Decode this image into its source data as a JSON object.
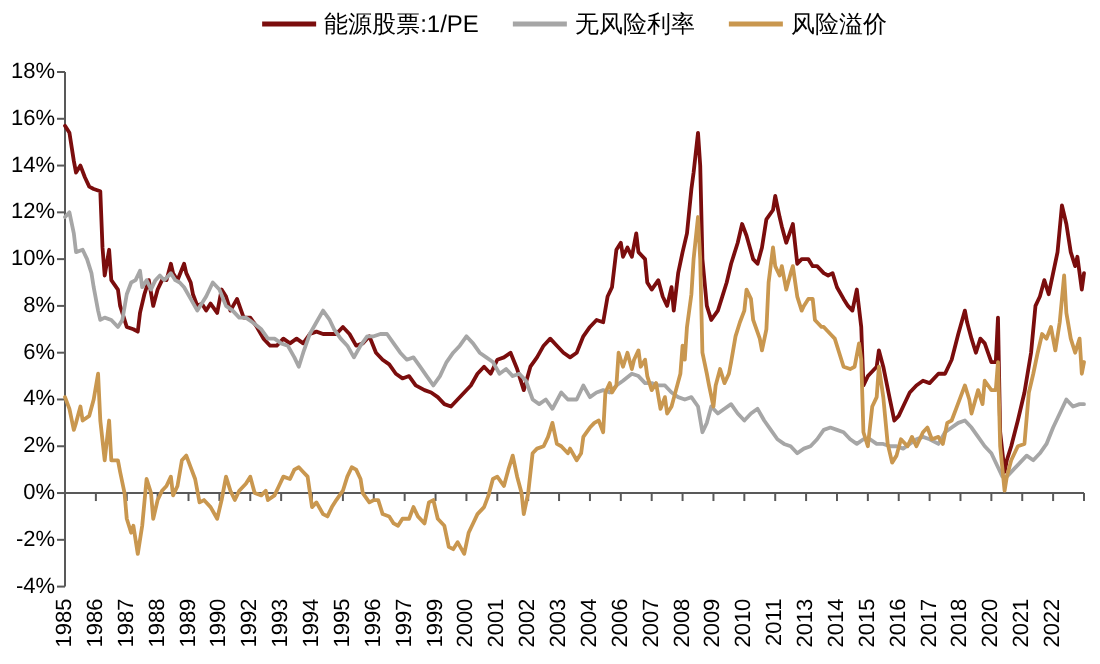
{
  "chart_data": {
    "type": "line",
    "legend": "top",
    "xlim": [
      "1985-01",
      "2023-07"
    ],
    "ylim": [
      -4,
      18
    ],
    "xticks": [
      {
        "value": "1985-01",
        "label": "1985"
      },
      {
        "value": "1986-03",
        "label": "1986"
      },
      {
        "value": "1987-05",
        "label": "1987"
      },
      {
        "value": "1988-07",
        "label": "1988"
      },
      {
        "value": "1989-09",
        "label": "1989"
      },
      {
        "value": "1990-11",
        "label": "1990"
      },
      {
        "value": "1992-01",
        "label": "1992"
      },
      {
        "value": "1993-03",
        "label": "1993"
      },
      {
        "value": "1994-05",
        "label": "1994"
      },
      {
        "value": "1995-07",
        "label": "1995"
      },
      {
        "value": "1996-09",
        "label": "1996"
      },
      {
        "value": "1997-11",
        "label": "1997"
      },
      {
        "value": "1999-01",
        "label": "1999"
      },
      {
        "value": "2000-03",
        "label": "2000"
      },
      {
        "value": "2001-05",
        "label": "2001"
      },
      {
        "value": "2002-07",
        "label": "2002"
      },
      {
        "value": "2003-09",
        "label": "2003"
      },
      {
        "value": "2004-11",
        "label": "2004"
      },
      {
        "value": "2006-01",
        "label": "2006"
      },
      {
        "value": "2007-03",
        "label": "2007"
      },
      {
        "value": "2008-05",
        "label": "2008"
      },
      {
        "value": "2009-07",
        "label": "2009"
      },
      {
        "value": "2010-09",
        "label": "2010"
      },
      {
        "value": "2011-11",
        "label": "2011"
      },
      {
        "value": "2013-01",
        "label": "2013"
      },
      {
        "value": "2014-03",
        "label": "2014"
      },
      {
        "value": "2015-05",
        "label": "2015"
      },
      {
        "value": "2016-07",
        "label": "2016"
      },
      {
        "value": "2017-09",
        "label": "2017"
      },
      {
        "value": "2018-11",
        "label": "2018"
      },
      {
        "value": "2020-01",
        "label": "2020"
      },
      {
        "value": "2021-03",
        "label": "2021"
      },
      {
        "value": "2022-05",
        "label": "2022"
      },
      {
        "value": "2023-07",
        "label": null
      }
    ],
    "yticks": [
      {
        "value": -4,
        "label": "-4%"
      },
      {
        "value": -2,
        "label": "-2%"
      },
      {
        "value": 0,
        "label": "0%"
      },
      {
        "value": 2,
        "label": "2%"
      },
      {
        "value": 4,
        "label": "4%"
      },
      {
        "value": 6,
        "label": "6%"
      },
      {
        "value": 8,
        "label": "8%"
      },
      {
        "value": 10,
        "label": "10%"
      },
      {
        "value": 12,
        "label": "12%"
      },
      {
        "value": 14,
        "label": "14%"
      },
      {
        "value": 16,
        "label": "16%"
      },
      {
        "value": 18,
        "label": "18%"
      }
    ],
    "series": [
      {
        "name": "能源股票:1/PE",
        "color": "#7b0d0d",
        "x": [
          "1985-01",
          "1985-03",
          "1985-05",
          "1985-06",
          "1985-08",
          "1985-10",
          "1985-12",
          "1986-02",
          "1986-05",
          "1986-06",
          "1986-07",
          "1986-09",
          "1986-10",
          "1987-01",
          "1987-02",
          "1987-04",
          "1987-05",
          "1987-08",
          "1987-10",
          "1987-11",
          "1988-01",
          "1988-03",
          "1988-05",
          "1988-07",
          "1988-09",
          "1988-11",
          "1989-01",
          "1989-02",
          "1989-04",
          "1989-07",
          "1989-08",
          "1989-10",
          "1989-11",
          "1990-01",
          "1990-03",
          "1990-05",
          "1990-07",
          "1990-10",
          "1990-12",
          "1991-02",
          "1991-04",
          "1991-07",
          "1991-10",
          "1992-01",
          "1992-04",
          "1992-07",
          "1992-10",
          "1993-01",
          "1993-04",
          "1993-07",
          "1993-10",
          "1994-01",
          "1994-04",
          "1994-07",
          "1994-10",
          "1995-01",
          "1995-04",
          "1995-07",
          "1995-10",
          "1996-01",
          "1996-04",
          "1996-07",
          "1996-10",
          "1997-01",
          "1997-04",
          "1997-07",
          "1997-10",
          "1998-01",
          "1998-04",
          "1998-08",
          "1998-11",
          "1999-02",
          "1999-05",
          "1999-08",
          "1999-11",
          "2000-02",
          "2000-05",
          "2000-08",
          "2000-11",
          "2001-02",
          "2001-05",
          "2001-08",
          "2001-11",
          "2002-02",
          "2002-05",
          "2002-08",
          "2002-11",
          "2003-02",
          "2003-05",
          "2003-08",
          "2003-11",
          "2004-02",
          "2004-05",
          "2004-08",
          "2004-11",
          "2005-02",
          "2005-05",
          "2005-07",
          "2005-09",
          "2005-11",
          "2006-01",
          "2006-02",
          "2006-04",
          "2006-06",
          "2006-08",
          "2006-09",
          "2006-12",
          "2007-01",
          "2007-03",
          "2007-06",
          "2007-08",
          "2007-10",
          "2007-12",
          "2008-01",
          "2008-03",
          "2008-05",
          "2008-07",
          "2008-09",
          "2008-10",
          "2008-12",
          "2009-01",
          "2009-02",
          "2009-04",
          "2009-06",
          "2009-09",
          "2009-11",
          "2010-01",
          "2010-03",
          "2010-06",
          "2010-08",
          "2010-10",
          "2011-01",
          "2011-03",
          "2011-05",
          "2011-07",
          "2011-10",
          "2011-11",
          "2012-01",
          "2012-02",
          "2012-04",
          "2012-07",
          "2012-09",
          "2012-11",
          "2013-02",
          "2013-04",
          "2013-06",
          "2013-09",
          "2013-11",
          "2014-01",
          "2014-03",
          "2014-06",
          "2014-08",
          "2014-10",
          "2014-12",
          "2015-02",
          "2015-03",
          "2015-05",
          "2015-06",
          "2015-09",
          "2015-10",
          "2015-12",
          "2016-03",
          "2016-05",
          "2016-07",
          "2016-09",
          "2016-12",
          "2017-03",
          "2017-06",
          "2017-09",
          "2018-01",
          "2018-04",
          "2018-07",
          "2018-10",
          "2019-01",
          "2019-02",
          "2019-04",
          "2019-06",
          "2019-08",
          "2019-10",
          "2020-01",
          "2020-03",
          "2020-04",
          "2020-05",
          "2020-07",
          "2020-08",
          "2020-10",
          "2021-01",
          "2021-04",
          "2021-07",
          "2021-09",
          "2021-11",
          "2022-01",
          "2022-03",
          "2022-05",
          "2022-07",
          "2022-09",
          "2022-11",
          "2023-01",
          "2023-03",
          "2023-04",
          "2023-06",
          "2023-07"
        ],
        "values": [
          15.7,
          15.4,
          14.2,
          13.7,
          14.0,
          13.5,
          13.1,
          13.0,
          12.9,
          10.5,
          9.3,
          10.4,
          9.1,
          8.7,
          8.0,
          7.4,
          7.1,
          7.0,
          6.9,
          7.7,
          8.5,
          9.1,
          8.0,
          8.7,
          9.1,
          9.1,
          9.8,
          9.4,
          9.1,
          9.8,
          9.4,
          9.0,
          8.5,
          8.0,
          8.1,
          7.8,
          8.1,
          7.7,
          8.7,
          8.4,
          7.8,
          8.3,
          7.5,
          7.5,
          7.1,
          6.6,
          6.3,
          6.3,
          6.6,
          6.4,
          6.6,
          6.4,
          6.8,
          6.9,
          6.8,
          6.8,
          6.8,
          7.1,
          6.8,
          6.3,
          6.4,
          6.7,
          6.0,
          5.7,
          5.5,
          5.1,
          4.9,
          5.0,
          4.6,
          4.4,
          4.3,
          4.1,
          3.8,
          3.7,
          4.0,
          4.3,
          4.6,
          5.1,
          5.4,
          5.1,
          5.7,
          5.8,
          6.0,
          5.3,
          4.4,
          5.4,
          5.8,
          6.3,
          6.6,
          6.3,
          6.0,
          5.8,
          6.0,
          6.7,
          7.1,
          7.4,
          7.3,
          8.4,
          8.8,
          10.4,
          10.7,
          10.1,
          10.5,
          10.1,
          11.1,
          10.3,
          10.0,
          9.0,
          8.7,
          9.1,
          8.4,
          8.0,
          8.8,
          7.8,
          9.4,
          10.3,
          11.1,
          13.0,
          13.7,
          15.4,
          14.0,
          10.0,
          8.0,
          7.4,
          7.8,
          8.4,
          9.0,
          9.8,
          10.7,
          11.5,
          11.0,
          10.0,
          9.8,
          10.5,
          11.7,
          12.1,
          12.7,
          11.8,
          11.4,
          10.7,
          11.5,
          9.8,
          10.0,
          10.0,
          9.7,
          9.7,
          9.4,
          9.3,
          9.4,
          8.8,
          8.3,
          8.0,
          7.8,
          8.7,
          7.1,
          4.6,
          5.0,
          5.1,
          5.4,
          6.1,
          5.4,
          4.0,
          3.1,
          3.3,
          3.7,
          4.3,
          4.6,
          4.8,
          4.7,
          5.1,
          5.1,
          5.7,
          6.8,
          7.8,
          7.3,
          6.6,
          6.0,
          6.6,
          6.4,
          5.6,
          5.6,
          7.5,
          2.6,
          0.9,
          1.4,
          2.0,
          3.1,
          4.3,
          6.0,
          8.0,
          8.4,
          9.1,
          8.5,
          9.4,
          10.3,
          12.3,
          11.5,
          10.3,
          9.7,
          10.1,
          8.7,
          9.4
        ]
      },
      {
        "name": "无风险利率",
        "color": "#a6a6a6",
        "x": [
          "1985-01",
          "1985-03",
          "1985-05",
          "1985-06",
          "1985-09",
          "1985-11",
          "1986-01",
          "1986-02",
          "1986-04",
          "1986-05",
          "1986-07",
          "1986-10",
          "1987-01",
          "1987-03",
          "1987-05",
          "1987-07",
          "1987-09",
          "1987-11",
          "1987-12",
          "1988-02",
          "1988-04",
          "1988-06",
          "1988-08",
          "1988-10",
          "1989-01",
          "1989-03",
          "1989-05",
          "1989-07",
          "1989-10",
          "1990-01",
          "1990-03",
          "1990-05",
          "1990-08",
          "1990-11",
          "1991-02",
          "1991-05",
          "1991-08",
          "1991-11",
          "1992-02",
          "1992-06",
          "1992-09",
          "1992-12",
          "1993-03",
          "1993-06",
          "1993-09",
          "1993-11",
          "1994-01",
          "1994-04",
          "1994-07",
          "1994-10",
          "1995-01",
          "1995-03",
          "1995-06",
          "1995-09",
          "1995-12",
          "1996-03",
          "1996-06",
          "1996-09",
          "1996-12",
          "1997-03",
          "1997-06",
          "1997-09",
          "1997-12",
          "1998-03",
          "1998-06",
          "1998-09",
          "1998-12",
          "1999-03",
          "1999-06",
          "1999-09",
          "1999-12",
          "2000-03",
          "2000-06",
          "2000-09",
          "2000-12",
          "2001-03",
          "2001-06",
          "2001-09",
          "2001-12",
          "2002-03",
          "2002-06",
          "2002-09",
          "2002-12",
          "2003-03",
          "2003-06",
          "2003-10",
          "2004-01",
          "2004-05",
          "2004-08",
          "2004-11",
          "2005-02",
          "2005-05",
          "2005-08",
          "2005-11",
          "2006-02",
          "2006-06",
          "2006-09",
          "2006-12",
          "2007-03",
          "2007-06",
          "2007-09",
          "2007-12",
          "2008-03",
          "2008-06",
          "2008-09",
          "2008-12",
          "2009-02",
          "2009-04",
          "2009-06",
          "2009-09",
          "2009-12",
          "2010-03",
          "2010-06",
          "2010-09",
          "2010-12",
          "2011-03",
          "2011-06",
          "2011-09",
          "2011-12",
          "2012-03",
          "2012-06",
          "2012-09",
          "2012-12",
          "2013-03",
          "2013-06",
          "2013-09",
          "2013-12",
          "2014-03",
          "2014-06",
          "2014-09",
          "2014-12",
          "2015-03",
          "2015-06",
          "2015-09",
          "2015-12",
          "2016-03",
          "2016-06",
          "2016-09",
          "2016-12",
          "2017-03",
          "2017-06",
          "2017-09",
          "2018-01",
          "2018-04",
          "2018-07",
          "2018-10",
          "2019-01",
          "2019-04",
          "2019-07",
          "2019-10",
          "2020-01",
          "2020-04",
          "2020-06",
          "2020-08",
          "2020-11",
          "2021-02",
          "2021-05",
          "2021-08",
          "2021-11",
          "2022-02",
          "2022-05",
          "2022-08",
          "2022-11",
          "2023-02",
          "2023-05",
          "2023-07"
        ],
        "values": [
          11.8,
          12.0,
          11.1,
          10.3,
          10.4,
          10.0,
          9.4,
          8.8,
          7.8,
          7.4,
          7.5,
          7.4,
          7.1,
          7.4,
          8.5,
          9.0,
          9.1,
          9.5,
          8.8,
          9.1,
          8.7,
          9.1,
          9.3,
          9.1,
          9.4,
          9.1,
          9.0,
          8.8,
          8.3,
          7.8,
          8.1,
          8.4,
          9.0,
          8.7,
          8.0,
          7.8,
          7.5,
          7.5,
          7.3,
          7.0,
          6.6,
          6.6,
          6.4,
          6.3,
          5.8,
          5.4,
          6.0,
          6.8,
          7.3,
          7.8,
          7.4,
          7.0,
          6.6,
          6.3,
          5.8,
          6.3,
          6.7,
          6.7,
          6.8,
          6.8,
          6.4,
          6.0,
          5.7,
          5.8,
          5.4,
          5.0,
          4.6,
          5.0,
          5.6,
          6.0,
          6.3,
          6.7,
          6.4,
          6.0,
          5.8,
          5.6,
          5.1,
          5.3,
          5.0,
          5.1,
          4.8,
          4.0,
          3.8,
          4.0,
          3.6,
          4.3,
          4.0,
          4.0,
          4.6,
          4.1,
          4.3,
          4.4,
          4.3,
          4.6,
          4.8,
          5.1,
          5.0,
          4.7,
          4.7,
          4.6,
          4.6,
          4.3,
          4.1,
          4.0,
          4.1,
          3.7,
          2.6,
          3.0,
          3.7,
          3.4,
          3.6,
          3.8,
          3.4,
          3.1,
          3.4,
          3.6,
          3.1,
          2.7,
          2.3,
          2.1,
          2.0,
          1.7,
          1.9,
          2.0,
          2.3,
          2.7,
          2.8,
          2.7,
          2.6,
          2.3,
          2.1,
          2.3,
          2.3,
          2.1,
          2.1,
          2.0,
          2.0,
          1.9,
          2.1,
          2.3,
          2.4,
          2.3,
          2.1,
          2.6,
          2.8,
          3.0,
          3.1,
          2.8,
          2.4,
          2.0,
          1.7,
          1.1,
          0.7,
          0.7,
          1.0,
          1.3,
          1.6,
          1.4,
          1.7,
          2.1,
          2.8,
          3.4,
          4.0,
          3.7,
          3.8,
          3.8
        ]
      },
      {
        "name": "风险溢价",
        "color": "#c9974f",
        "x": [
          "1985-01",
          "1985-03",
          "1985-05",
          "1985-06",
          "1985-08",
          "1985-09",
          "1985-12",
          "1986-02",
          "1986-04",
          "1986-05",
          "1986-07",
          "1986-09",
          "1986-10",
          "1987-01",
          "1987-02",
          "1987-04",
          "1987-05",
          "1987-07",
          "1987-08",
          "1987-10",
          "1987-12",
          "1988-02",
          "1988-04",
          "1988-05",
          "1988-07",
          "1988-09",
          "1988-11",
          "1989-01",
          "1989-02",
          "1989-04",
          "1989-06",
          "1989-08",
          "1989-10",
          "1989-12",
          "1990-02",
          "1990-04",
          "1990-07",
          "1990-10",
          "1990-12",
          "1991-02",
          "1991-04",
          "1991-06",
          "1991-08",
          "1991-11",
          "1992-01",
          "1992-03",
          "1992-06",
          "1992-08",
          "1992-09",
          "1992-12",
          "1993-02",
          "1993-04",
          "1993-07",
          "1993-09",
          "1993-11",
          "1994-01",
          "1994-03",
          "1994-05",
          "1994-07",
          "1994-10",
          "1994-12",
          "1995-02",
          "1995-04",
          "1995-07",
          "1995-09",
          "1995-11",
          "1996-01",
          "1996-03",
          "1996-04",
          "1996-07",
          "1996-09",
          "1996-11",
          "1997-01",
          "1997-04",
          "1997-06",
          "1997-08",
          "1997-10",
          "1998-01",
          "1998-03",
          "1998-05",
          "1998-08",
          "1998-10",
          "1998-12",
          "1999-02",
          "1999-05",
          "1999-07",
          "1999-09",
          "1999-11",
          "2000-02",
          "2000-04",
          "2000-06",
          "2000-08",
          "2000-11",
          "2001-01",
          "2001-03",
          "2001-05",
          "2001-08",
          "2001-10",
          "2001-12",
          "2002-02",
          "2002-04",
          "2002-05",
          "2002-07",
          "2002-09",
          "2002-11",
          "2003-02",
          "2003-04",
          "2003-06",
          "2003-08",
          "2003-10",
          "2004-01",
          "2004-02",
          "2004-05",
          "2004-07",
          "2004-08",
          "2004-11",
          "2005-01",
          "2005-03",
          "2005-05",
          "2005-06",
          "2005-08",
          "2005-09",
          "2005-11",
          "2005-12",
          "2006-02",
          "2006-04",
          "2006-06",
          "2006-07",
          "2006-09",
          "2006-10",
          "2006-12",
          "2007-01",
          "2007-03",
          "2007-05",
          "2007-07",
          "2007-09",
          "2007-10",
          "2007-12",
          "2008-02",
          "2008-04",
          "2008-05",
          "2008-06",
          "2008-07",
          "2008-09",
          "2008-10",
          "2008-12",
          "2009-01",
          "2009-02",
          "2009-04",
          "2009-05",
          "2009-07",
          "2009-08",
          "2009-10",
          "2009-12",
          "2010-02",
          "2010-03",
          "2010-05",
          "2010-07",
          "2010-09",
          "2010-10",
          "2010-12",
          "2011-01",
          "2011-04",
          "2011-05",
          "2011-07",
          "2011-08",
          "2011-10",
          "2011-11",
          "2012-01",
          "2012-02",
          "2012-04",
          "2012-06",
          "2012-07",
          "2012-09",
          "2012-11",
          "2012-12",
          "2013-02",
          "2013-04",
          "2013-05",
          "2013-08",
          "2013-09",
          "2013-12",
          "2014-02",
          "2014-04",
          "2014-06",
          "2014-09",
          "2014-11",
          "2015-01",
          "2015-02",
          "2015-03",
          "2015-05",
          "2015-07",
          "2015-09",
          "2015-10",
          "2015-12",
          "2016-02",
          "2016-04",
          "2016-06",
          "2016-08",
          "2016-11",
          "2017-01",
          "2017-03",
          "2017-06",
          "2017-08",
          "2017-10",
          "2018-01",
          "2018-03",
          "2018-05",
          "2018-07",
          "2018-09",
          "2018-11",
          "2019-01",
          "2019-03",
          "2019-04",
          "2019-07",
          "2019-09",
          "2019-10",
          "2020-01",
          "2020-03",
          "2020-04",
          "2020-05",
          "2020-07",
          "2020-08",
          "2020-10",
          "2021-01",
          "2021-04",
          "2021-06",
          "2021-08",
          "2021-10",
          "2021-12",
          "2022-02",
          "2022-04",
          "2022-06",
          "2022-08",
          "2022-10",
          "2022-11",
          "2023-01",
          "2023-03",
          "2023-05",
          "2023-06",
          "2023-07"
        ],
        "values": [
          4.1,
          3.6,
          2.7,
          3.0,
          3.7,
          3.1,
          3.3,
          4.0,
          5.1,
          3.1,
          1.4,
          3.1,
          1.4,
          1.4,
          0.9,
          0.0,
          -1.1,
          -1.7,
          -1.4,
          -2.6,
          -1.4,
          0.6,
          0.0,
          -1.1,
          -0.3,
          0.1,
          0.3,
          0.7,
          -0.1,
          0.3,
          1.4,
          1.6,
          1.1,
          0.6,
          -0.4,
          -0.3,
          -0.6,
          -1.1,
          -0.3,
          0.7,
          0.1,
          -0.3,
          0.1,
          0.4,
          0.7,
          0.0,
          -0.1,
          0.1,
          -0.3,
          -0.1,
          0.3,
          0.7,
          0.6,
          1.0,
          1.1,
          0.9,
          0.7,
          -0.6,
          -0.4,
          -0.9,
          -1.0,
          -0.6,
          -0.3,
          0.1,
          0.7,
          1.1,
          1.0,
          0.6,
          0.0,
          -0.4,
          -0.3,
          -0.3,
          -0.9,
          -1.0,
          -1.3,
          -1.4,
          -1.1,
          -1.1,
          -0.6,
          -1.0,
          -1.3,
          -0.4,
          -0.3,
          -1.1,
          -1.4,
          -2.3,
          -2.4,
          -2.1,
          -2.6,
          -1.7,
          -1.3,
          -0.9,
          -0.6,
          -0.1,
          0.6,
          0.7,
          0.3,
          1.0,
          1.6,
          0.7,
          0.0,
          -0.9,
          0.0,
          1.7,
          1.9,
          2.0,
          2.4,
          3.0,
          2.1,
          2.0,
          1.7,
          1.9,
          1.4,
          1.7,
          2.4,
          2.8,
          3.0,
          3.1,
          2.6,
          4.3,
          4.7,
          4.3,
          4.6,
          6.0,
          5.4,
          6.0,
          5.3,
          5.7,
          6.1,
          5.4,
          5.7,
          5.0,
          4.4,
          4.7,
          3.6,
          4.1,
          3.4,
          3.7,
          4.4,
          5.1,
          6.3,
          5.7,
          7.1,
          8.5,
          10.0,
          11.8,
          10.0,
          6.0,
          5.1,
          4.6,
          3.7,
          4.6,
          5.3,
          4.7,
          5.1,
          5.6,
          6.7,
          7.3,
          7.8,
          8.7,
          8.3,
          7.4,
          6.6,
          6.1,
          7.0,
          9.0,
          10.5,
          9.7,
          9.3,
          9.7,
          8.7,
          9.4,
          9.7,
          8.4,
          7.8,
          8.0,
          8.3,
          8.3,
          7.4,
          7.1,
          7.1,
          6.8,
          6.6,
          6.0,
          5.4,
          5.3,
          5.4,
          6.4,
          5.7,
          2.6,
          2.0,
          3.7,
          4.1,
          5.4,
          4.1,
          2.1,
          1.3,
          1.6,
          2.3,
          2.0,
          2.4,
          2.0,
          2.6,
          2.8,
          2.3,
          2.4,
          2.1,
          3.0,
          3.1,
          3.6,
          4.1,
          4.6,
          4.0,
          3.4,
          4.4,
          3.8,
          4.8,
          4.4,
          4.4,
          5.6,
          2.0,
          0.1,
          0.7,
          1.4,
          2.0,
          2.1,
          4.3,
          5.1,
          6.0,
          6.8,
          6.6,
          7.1,
          6.1,
          7.3,
          9.3,
          7.7,
          6.6,
          6.0,
          6.6,
          5.1,
          5.6
        ]
      }
    ]
  }
}
